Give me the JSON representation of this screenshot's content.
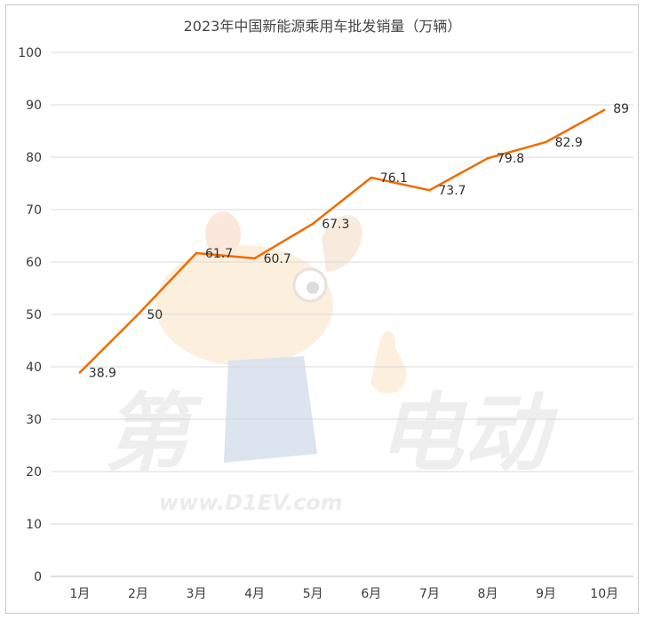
{
  "chart_data": {
    "type": "line",
    "title": "2023年中国新能源乘用车批发销量（万辆）",
    "categories": [
      "1月",
      "2月",
      "3月",
      "4月",
      "5月",
      "6月",
      "7月",
      "8月",
      "9月",
      "10月"
    ],
    "series": [
      {
        "values": [
          38.9,
          50,
          61.7,
          60.7,
          67.3,
          76.1,
          73.7,
          79.8,
          82.9,
          89
        ],
        "color": "#ef6c00"
      }
    ],
    "data_labels": [
      "38.9",
      "50",
      "61.7",
      "60.7",
      "67.3",
      "76.1",
      "73.7",
      "79.8",
      "82.9",
      "89"
    ],
    "y_ticks": [
      "0",
      "10",
      "20",
      "30",
      "40",
      "50",
      "60",
      "70",
      "80",
      "90",
      "100"
    ],
    "ylim": [
      0,
      100
    ],
    "grid": "horizontal",
    "legend": "none"
  },
  "watermark": {
    "text_left": "第",
    "text_right": "电动",
    "url": "www.D1EV.com"
  }
}
